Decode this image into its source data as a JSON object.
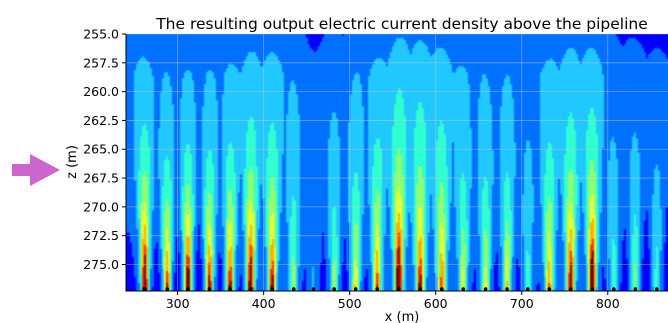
{
  "chart_data": {
    "type": "heatmap",
    "title": "The resulting output electric current density above the pipeline",
    "xlabel": "x (m)",
    "ylabel": "z (m)",
    "x_range": [
      240,
      870
    ],
    "y_range": [
      255.0,
      277.3
    ],
    "y_inverted": true,
    "grid": true,
    "legend": "none",
    "x_ticks": [
      300,
      400,
      500,
      600,
      700,
      800
    ],
    "y_ticks": [
      255.0,
      257.5,
      260.0,
      262.5,
      265.0,
      267.5,
      270.0,
      272.5,
      275.0
    ],
    "x_tick_labels": [
      "300",
      "400",
      "500",
      "600",
      "700",
      "800"
    ],
    "y_tick_labels": [
      "255.0",
      "257.5",
      "260.0",
      "262.5",
      "265.0",
      "267.5",
      "270.0",
      "272.5",
      "275.0"
    ],
    "colormap": [
      "#00007f",
      "#0000ff",
      "#0070ff",
      "#20c8ff",
      "#30ffd0",
      "#90ff70",
      "#e8ff30",
      "#ffb000",
      "#ff3000",
      "#800000"
    ],
    "source_x": [
      262,
      288,
      312,
      337,
      361,
      385,
      410,
      435,
      458,
      482,
      507,
      532,
      557,
      582,
      607,
      632,
      658,
      683,
      707,
      732,
      757,
      782,
      807,
      832,
      857
    ],
    "source_strength": [
      0.92,
      0.86,
      0.97,
      0.9,
      0.85,
      0.88,
      0.8,
      0.55,
      0.25,
      0.6,
      0.7,
      0.76,
      0.86,
      0.74,
      0.7,
      0.6,
      0.66,
      0.7,
      0.45,
      0.72,
      0.82,
      0.9,
      0.5,
      0.62,
      0.55
    ]
  },
  "annotation": {
    "arrow_color": "#cc66cc",
    "arrow_icon": "right-arrow-icon"
  }
}
